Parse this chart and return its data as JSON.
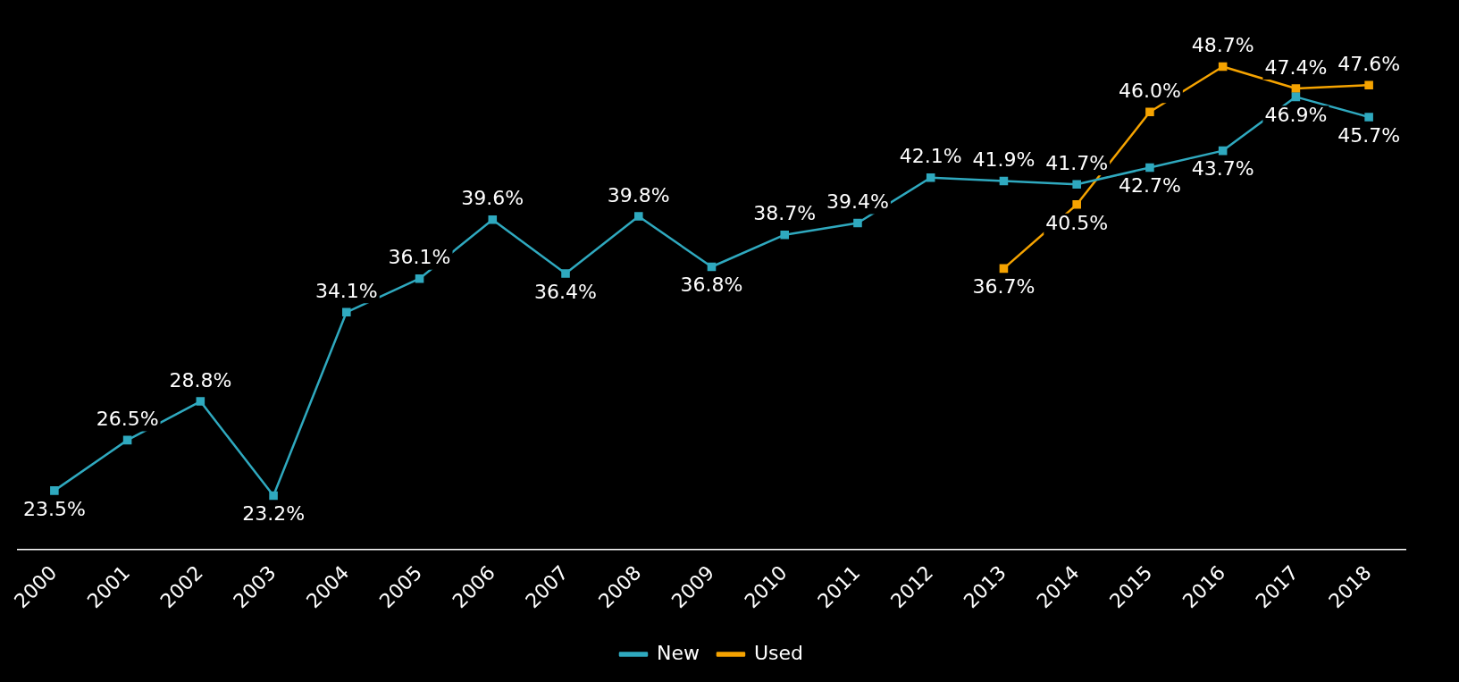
{
  "chart_data": {
    "type": "line",
    "categories": [
      "2000",
      "2001",
      "2002",
      "2003",
      "2004",
      "2005",
      "2006",
      "2007",
      "2008",
      "2009",
      "2010",
      "2011",
      "2012",
      "2013",
      "2014",
      "2015",
      "2016",
      "2017",
      "2018"
    ],
    "series": [
      {
        "name": "New",
        "color": "#2fa9bf",
        "values": [
          23.5,
          26.5,
          28.8,
          23.2,
          34.1,
          36.1,
          39.6,
          36.4,
          39.8,
          36.8,
          38.7,
          39.4,
          42.1,
          41.9,
          41.7,
          42.7,
          43.7,
          46.9,
          45.7
        ],
        "value_labels": [
          "23.5%",
          "26.5%",
          "28.8%",
          "23.2%",
          "34.1%",
          "36.1%",
          "39.6%",
          "36.4%",
          "39.8%",
          "36.8%",
          "38.7%",
          "39.4%",
          "42.1%",
          "41.9%",
          "41.7%",
          "42.7%",
          "43.7%",
          "46.9%",
          "45.7%"
        ]
      },
      {
        "name": "Used",
        "color": "#f5a300",
        "values": [
          null,
          null,
          null,
          null,
          null,
          null,
          null,
          null,
          null,
          null,
          null,
          null,
          null,
          36.7,
          40.5,
          46.0,
          48.7,
          47.4,
          47.6
        ],
        "value_labels": [
          null,
          null,
          null,
          null,
          null,
          null,
          null,
          null,
          null,
          null,
          null,
          null,
          null,
          "36.7%",
          "40.5%",
          "46.0%",
          "48.7%",
          "47.4%",
          "47.6%"
        ]
      }
    ],
    "legend": "bottom",
    "marker": "square",
    "line_style": "solid",
    "tick_labels": "x"
  }
}
